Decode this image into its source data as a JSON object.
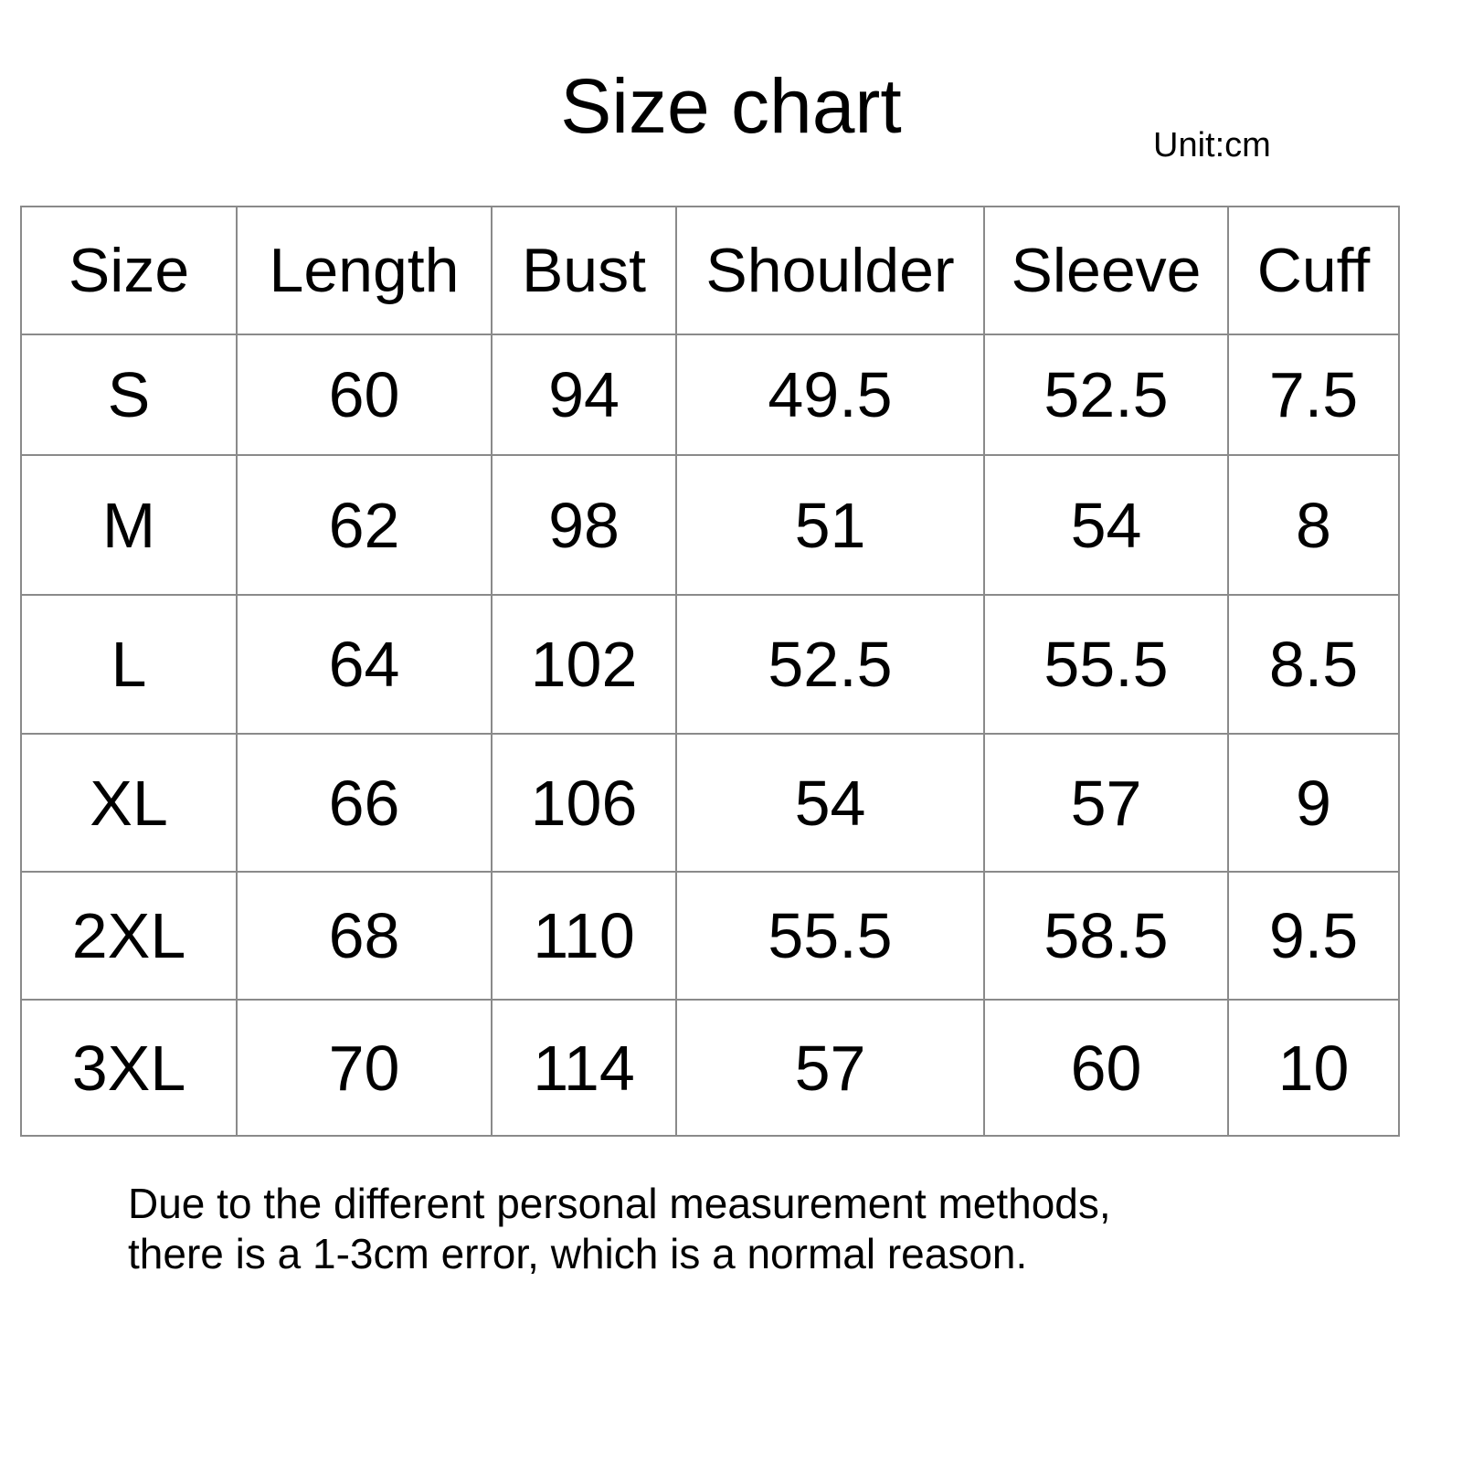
{
  "title": "Size chart",
  "unit": "Unit:cm",
  "table": {
    "headers": [
      "Size",
      "Length",
      "Bust",
      "Shoulder",
      "Sleeve",
      "Cuff"
    ],
    "rows": [
      [
        "S",
        "60",
        "94",
        "49.5",
        "52.5",
        "7.5"
      ],
      [
        "M",
        "62",
        "98",
        "51",
        "54",
        "8"
      ],
      [
        "L",
        "64",
        "102",
        "52.5",
        "55.5",
        "8.5"
      ],
      [
        "XL",
        "66",
        "106",
        "54",
        "57",
        "9"
      ],
      [
        "2XL",
        "68",
        "110",
        "55.5",
        "58.5",
        "9.5"
      ],
      [
        "3XL",
        "70",
        "114",
        "57",
        "60",
        "10"
      ]
    ]
  },
  "note": {
    "line1": "Due to the different personal measurement methods,",
    "line2": "there is a 1-3cm error, which is a normal reason."
  }
}
